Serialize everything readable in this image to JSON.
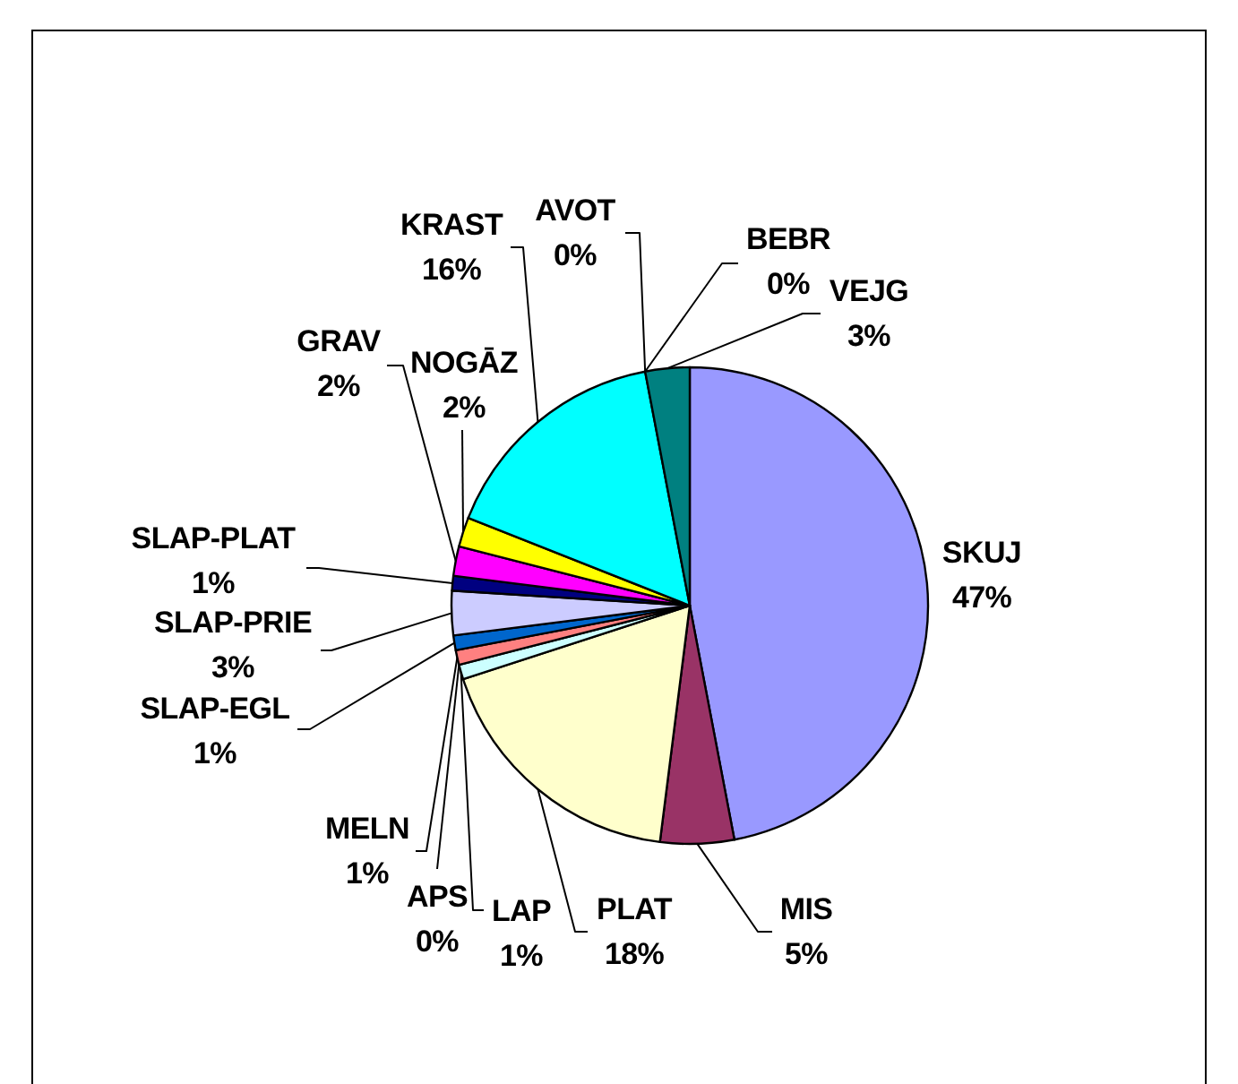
{
  "chart_data": {
    "type": "pie",
    "categories": [
      "SKUJ",
      "MIS",
      "PLAT",
      "LAP",
      "APS",
      "MELN",
      "SLAP-EGL",
      "SLAP-PRIE",
      "SLAP-PLAT",
      "GRAV",
      "NOGĀZ",
      "KRAST",
      "AVOT",
      "BEBR",
      "VEJG"
    ],
    "values": [
      47,
      5,
      18,
      1,
      0,
      1,
      1,
      3,
      1,
      2,
      2,
      16,
      0,
      0,
      3
    ],
    "colors": [
      "#9999ff",
      "#993366",
      "#ffffcc",
      "#ccffff",
      null,
      "#ff8080",
      "#0066cc",
      "#ccccff",
      "#000080",
      "#ff00ff",
      "#ffff00",
      "#00ffff",
      null,
      null,
      "#008080"
    ],
    "value_labels": [
      "47%",
      "5%",
      "18%",
      "1%",
      "0%",
      "1%",
      "1%",
      "3%",
      "1%",
      "2%",
      "2%",
      "16%",
      "0%",
      "0%",
      "3%"
    ]
  }
}
